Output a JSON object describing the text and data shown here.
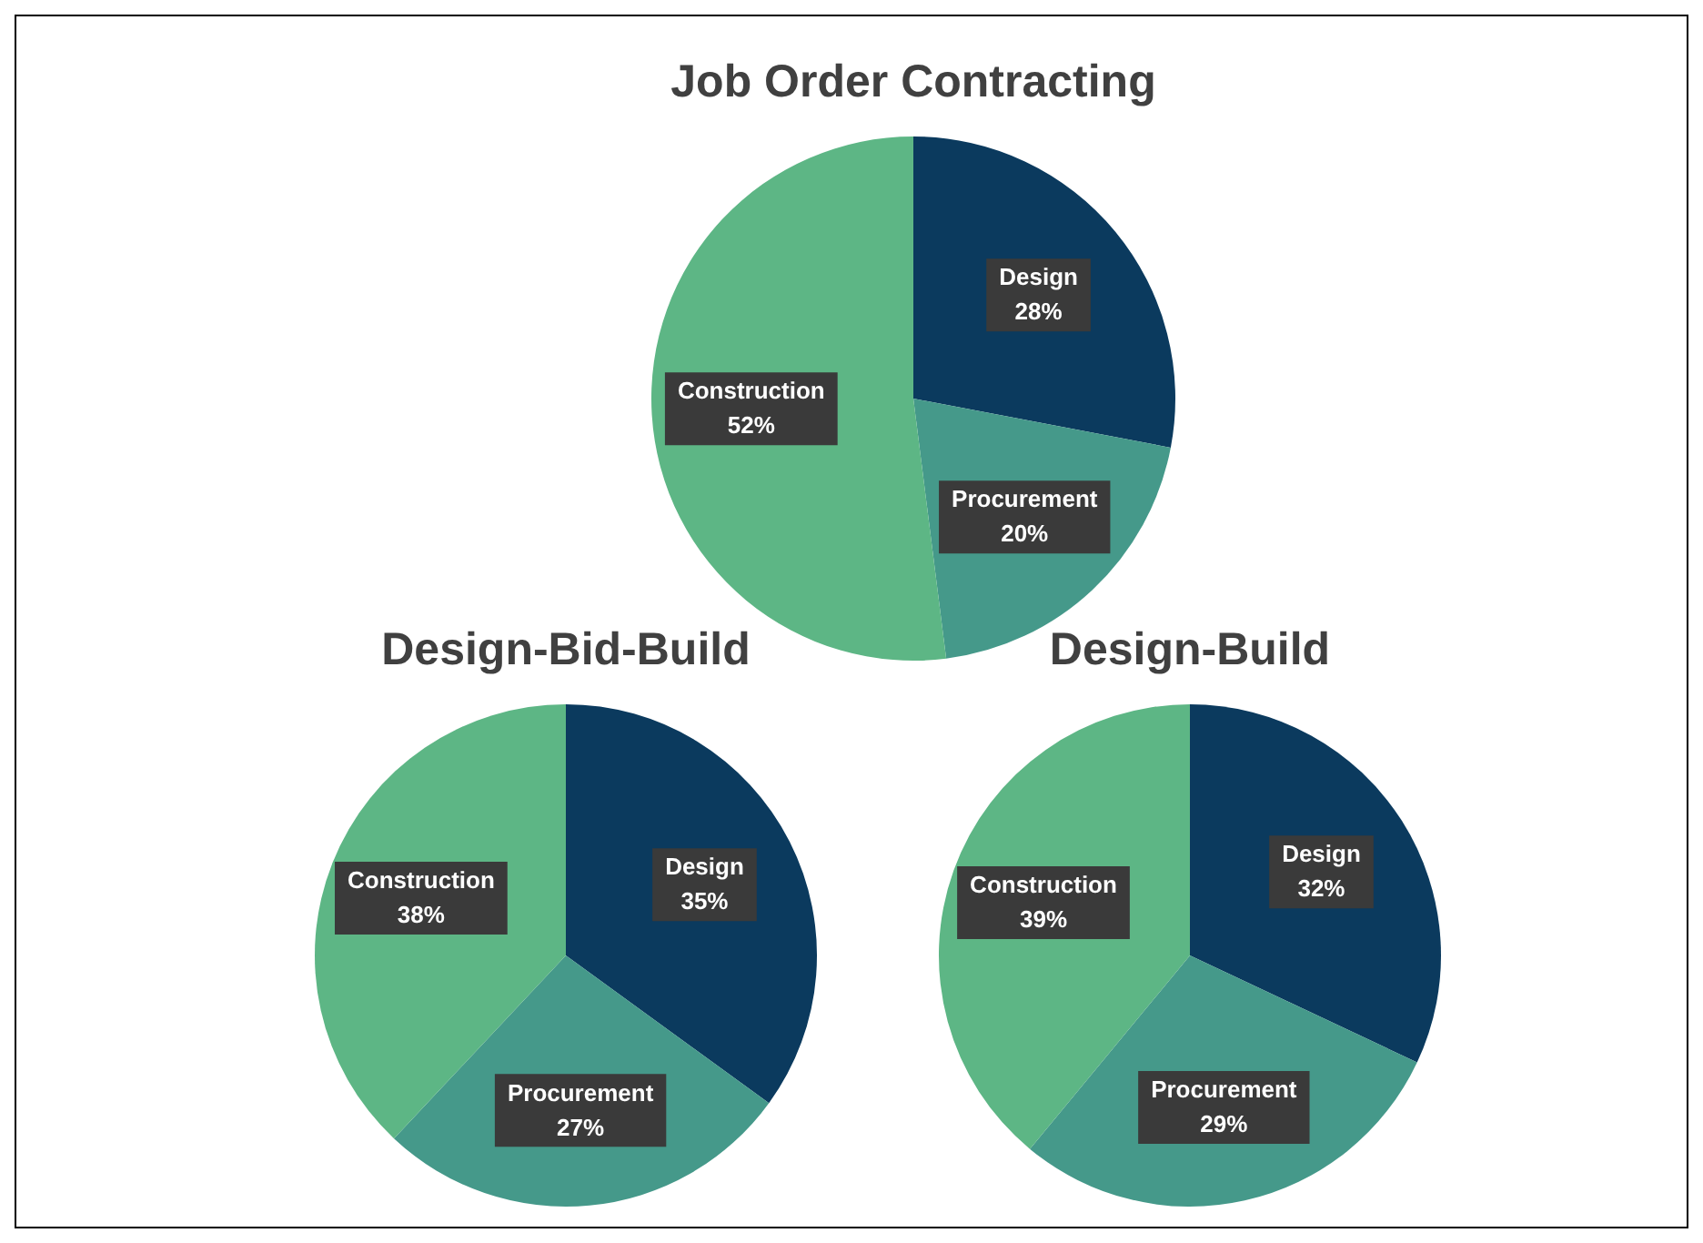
{
  "chart_data": [
    {
      "type": "pie",
      "title": "Job Order Contracting",
      "categories": [
        "Design",
        "Procurement",
        "Construction"
      ],
      "values": [
        28,
        20,
        52
      ],
      "value_labels": [
        "28%",
        "20%",
        "52%"
      ],
      "colors": [
        "#0b3a5e",
        "#45998a",
        "#5db685"
      ],
      "legend": false
    },
    {
      "type": "pie",
      "title": "Design-Bid-Build",
      "categories": [
        "Design",
        "Procurement",
        "Construction"
      ],
      "values": [
        35,
        27,
        38
      ],
      "value_labels": [
        "35%",
        "27%",
        "38%"
      ],
      "colors": [
        "#0b3a5e",
        "#45998a",
        "#5db685"
      ],
      "legend": false
    },
    {
      "type": "pie",
      "title": "Design-Build",
      "categories": [
        "Design",
        "Procurement",
        "Construction"
      ],
      "values": [
        32,
        29,
        39
      ],
      "value_labels": [
        "32%",
        "29%",
        "39%"
      ],
      "colors": [
        "#0b3a5e",
        "#45998a",
        "#5db685"
      ],
      "legend": false
    }
  ]
}
